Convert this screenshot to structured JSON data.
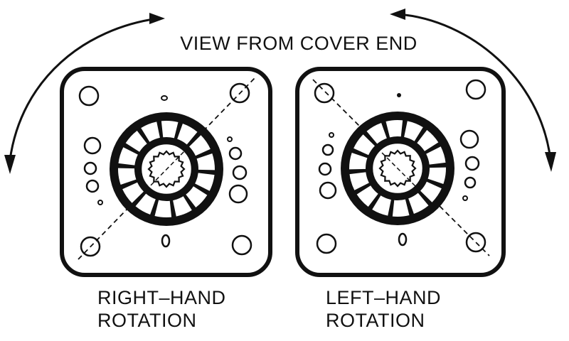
{
  "title": "VIEW FROM COVER END",
  "plates": [
    {
      "id": "right-hand",
      "label_line1": "RIGHT–HAND",
      "label_line2": "ROTATION",
      "arrow_direction": "counterclockwise",
      "diagonal": "bottom-left-to-top-right"
    },
    {
      "id": "left-hand",
      "label_line1": "LEFT–HAND",
      "label_line2": "ROTATION",
      "arrow_direction": "clockwise",
      "diagonal": "top-left-to-bottom-right"
    }
  ],
  "colors": {
    "ink": "#111111",
    "paper": "#ffffff"
  }
}
